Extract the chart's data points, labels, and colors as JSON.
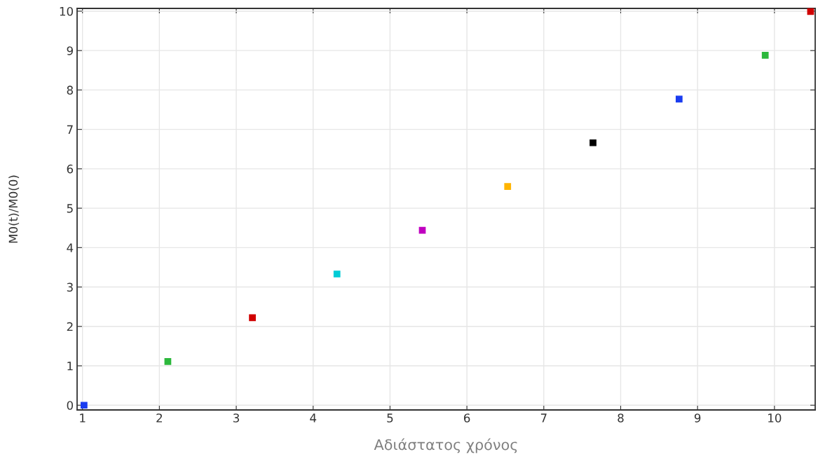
{
  "chart_data": {
    "type": "scatter",
    "xlabel": "Αδιάστατος χρόνος",
    "ylabel": "M0(t)/M0(0)",
    "x": [
      1.02,
      2.11,
      3.21,
      4.31,
      5.42,
      6.53,
      7.64,
      8.76,
      9.88,
      10.47
    ],
    "values": [
      0,
      1.11,
      2.22,
      3.33,
      4.44,
      5.55,
      6.66,
      7.77,
      8.88,
      9.99
    ],
    "colors": [
      "#1a3cf0",
      "#2cb83c",
      "#d00000",
      "#00ccd6",
      "#c000c0",
      "#ffb400",
      "#000000",
      "#1a3cf0",
      "#2cb83c",
      "#d00000"
    ],
    "xlim": [
      0.93,
      10.53
    ],
    "ylim": [
      -0.12,
      10.07
    ],
    "xticks": [
      1,
      2,
      3,
      4,
      5,
      6,
      7,
      8,
      9,
      10
    ],
    "yticks": [
      0,
      1,
      2,
      3,
      4,
      5,
      6,
      7,
      8,
      9,
      10
    ],
    "grid": true,
    "marker": "square"
  }
}
